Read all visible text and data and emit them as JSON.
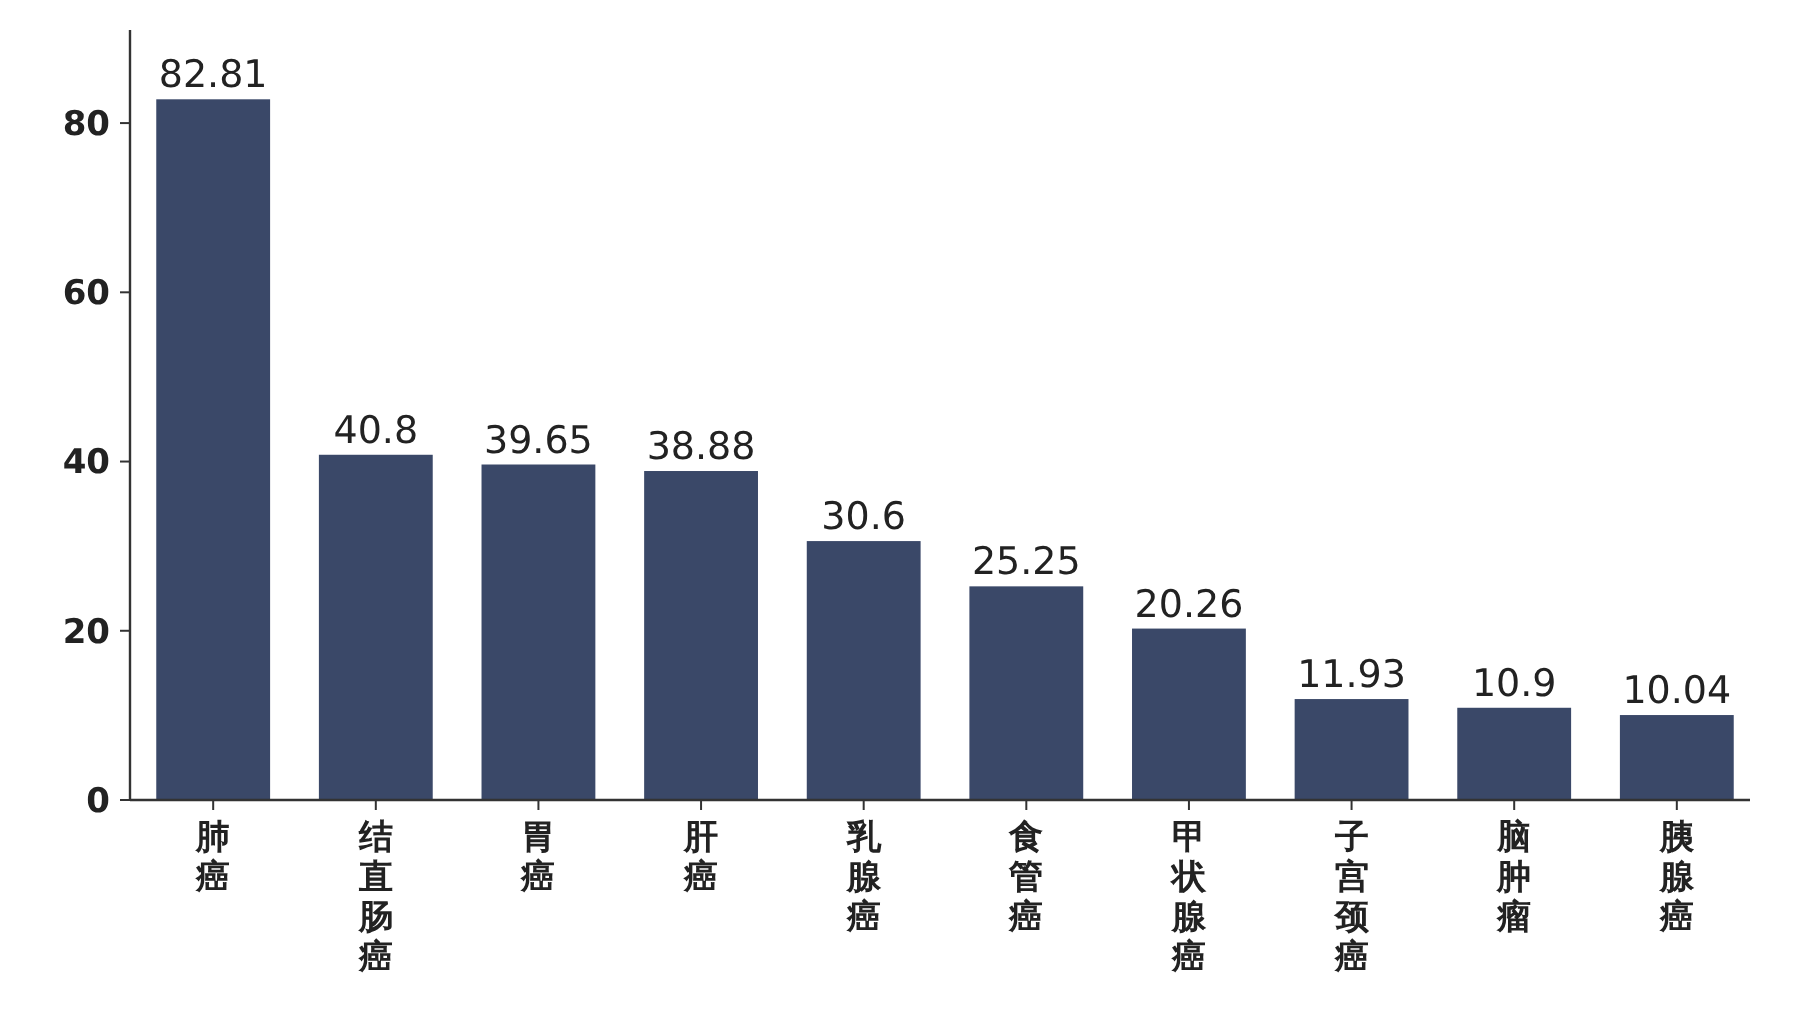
{
  "chart_data": {
    "type": "bar",
    "categories": [
      "肺癌",
      "结直肠癌",
      "胃癌",
      "肝癌",
      "乳腺癌",
      "食管癌",
      "甲状腺癌",
      "子宫颈癌",
      "脑肿瘤",
      "胰腺癌"
    ],
    "values": [
      82.81,
      40.8,
      39.65,
      38.88,
      30.6,
      25.25,
      20.26,
      11.93,
      10.9,
      10.04
    ],
    "color": "#3a4868",
    "ylim": [
      0,
      91
    ],
    "yticks": [
      0,
      20,
      40,
      60,
      80
    ],
    "data_labels": true,
    "grid": false
  }
}
